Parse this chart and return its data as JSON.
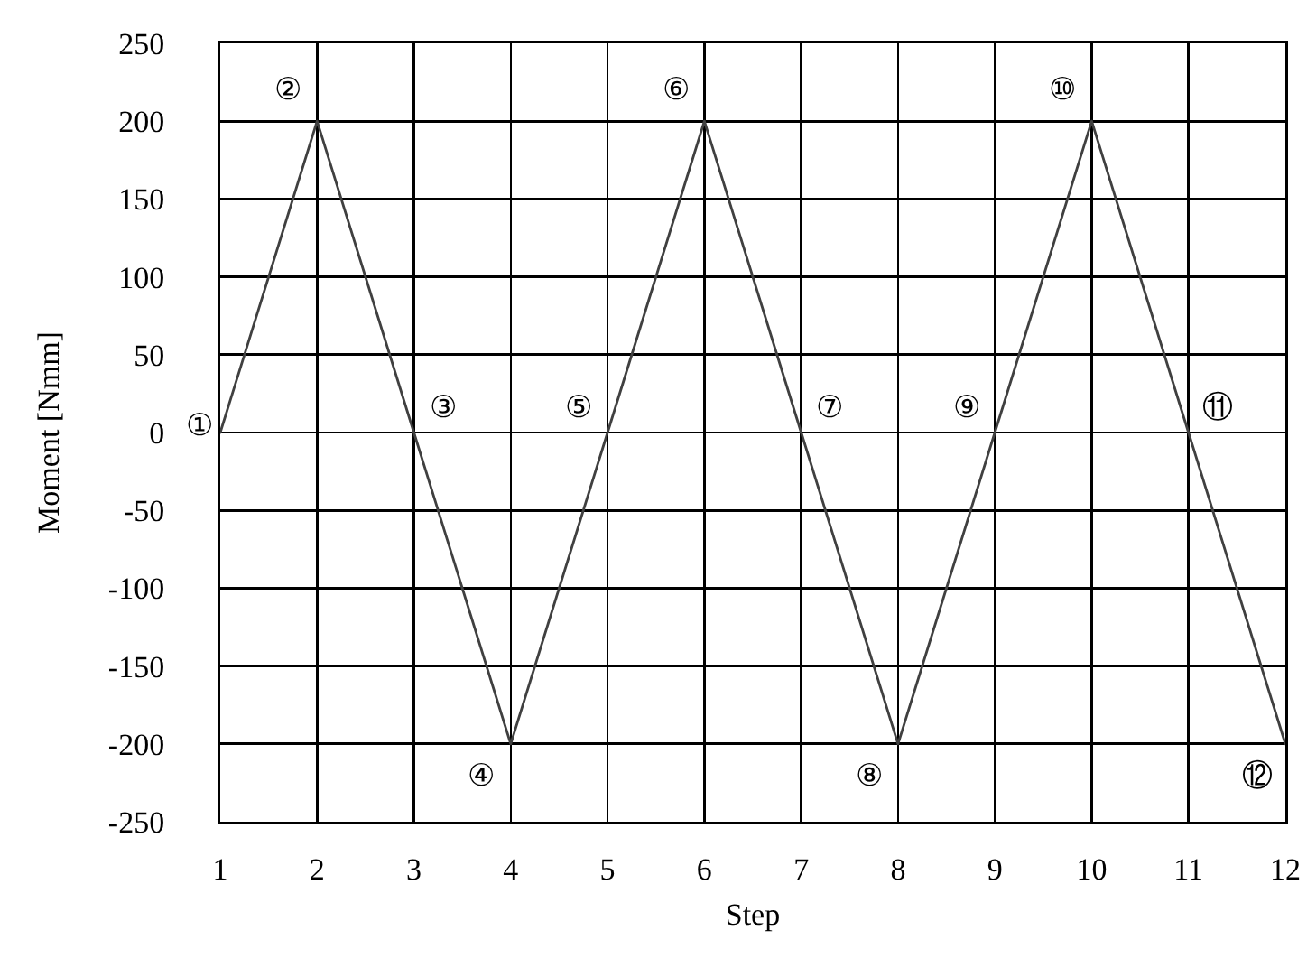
{
  "chart_data": {
    "type": "line",
    "xlabel": "Step",
    "ylabel": "Moment [Nmm]",
    "x": [
      1,
      2,
      3,
      4,
      5,
      6,
      7,
      8,
      9,
      10,
      11,
      12
    ],
    "series": [
      {
        "color": "#404040",
        "values": [
          0,
          200,
          0,
          -200,
          0,
          200,
          0,
          -200,
          0,
          200,
          0,
          -200
        ]
      }
    ],
    "xlim": [
      1,
      12
    ],
    "xticks": [
      1,
      2,
      3,
      4,
      5,
      6,
      7,
      8,
      9,
      10,
      11,
      12
    ],
    "ylim": [
      -250,
      250
    ],
    "yticks": [
      -250,
      -200,
      -150,
      -100,
      -50,
      0,
      50,
      100,
      150,
      200,
      250
    ],
    "grid": true,
    "marker": "none",
    "line_style": "solid",
    "annotations": [
      {
        "text": "①",
        "x": 1,
        "y": 0
      },
      {
        "text": "②",
        "x": 2,
        "y": 200
      },
      {
        "text": "③",
        "x": 3,
        "y": 0
      },
      {
        "text": "④",
        "x": 4,
        "y": -200
      },
      {
        "text": "⑤",
        "x": 5,
        "y": 0
      },
      {
        "text": "⑥",
        "x": 6,
        "y": 200
      },
      {
        "text": "⑦",
        "x": 7,
        "y": 0
      },
      {
        "text": "⑧",
        "x": 8,
        "y": -200
      },
      {
        "text": "⑨",
        "x": 9,
        "y": 0
      },
      {
        "text": "⑩",
        "x": 10,
        "y": 200
      },
      {
        "text": "⑪",
        "x": 11,
        "y": 0
      },
      {
        "text": "⑫",
        "x": 12,
        "y": -200
      }
    ]
  }
}
